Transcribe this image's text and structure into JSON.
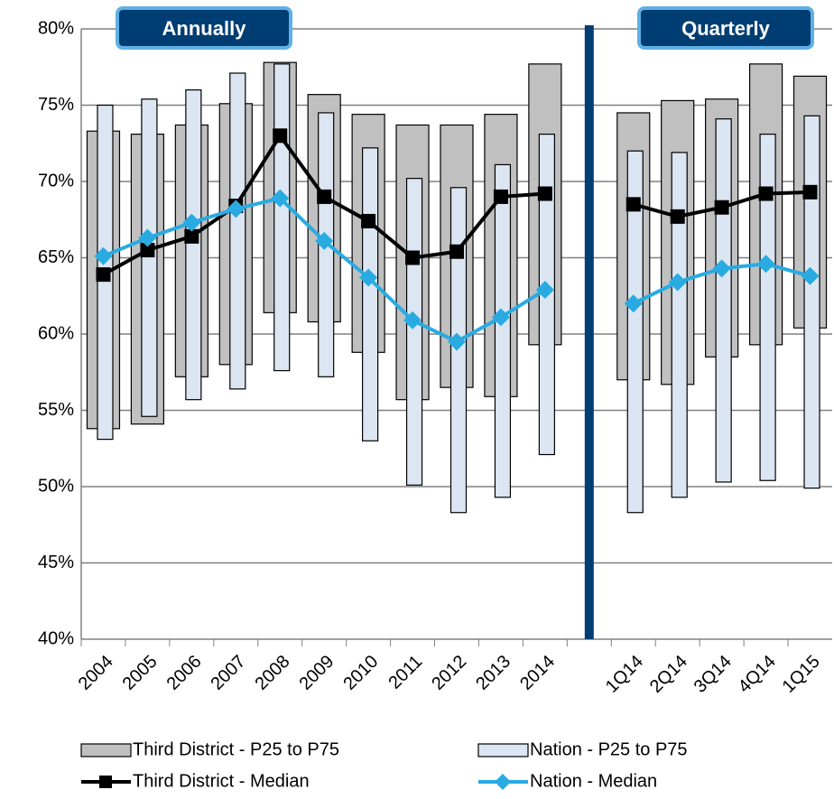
{
  "chart_data": {
    "type": "range-line",
    "annotations": [
      "Annually",
      "Quarterly"
    ],
    "categories": [
      "2004",
      "2005",
      "2006",
      "2007",
      "2008",
      "2009",
      "2010",
      "2011",
      "2012",
      "2013",
      "2014",
      null,
      "1Q14",
      "2Q14",
      "3Q14",
      "4Q14",
      "1Q15"
    ],
    "ylim": [
      40,
      80
    ],
    "yticks": [
      {
        "value": 40,
        "label": "40%"
      },
      {
        "value": 45,
        "label": "45%"
      },
      {
        "value": 50,
        "label": "50%"
      },
      {
        "value": 55,
        "label": "55%"
      },
      {
        "value": 60,
        "label": "60%"
      },
      {
        "value": 65,
        "label": "65%"
      },
      {
        "value": 70,
        "label": "70%"
      },
      {
        "value": 75,
        "label": "75%"
      },
      {
        "value": 80,
        "label": "80%"
      }
    ],
    "grid": true,
    "series": [
      {
        "name": "Third District - P25 to P75",
        "type": "range",
        "color": "#c0c0c0",
        "low": [
          53.8,
          54.1,
          57.2,
          58.0,
          61.4,
          60.8,
          58.8,
          55.7,
          56.5,
          55.9,
          59.3,
          null,
          57.0,
          56.7,
          58.5,
          59.3,
          60.4
        ],
        "high": [
          73.3,
          73.1,
          73.7,
          75.1,
          77.8,
          75.7,
          74.4,
          73.7,
          73.7,
          74.4,
          77.7,
          null,
          74.5,
          75.3,
          75.4,
          77.7,
          76.9
        ]
      },
      {
        "name": "Nation - P25 to P75",
        "type": "range",
        "color": "#dce6f2",
        "low": [
          53.1,
          54.6,
          55.7,
          56.4,
          57.6,
          57.2,
          53.0,
          50.1,
          48.3,
          49.3,
          52.1,
          null,
          48.3,
          49.3,
          50.3,
          50.4,
          49.9
        ],
        "high": [
          75.0,
          75.4,
          76.0,
          77.1,
          77.7,
          74.5,
          72.2,
          70.2,
          69.6,
          71.1,
          73.1,
          null,
          72.0,
          71.9,
          74.1,
          73.1,
          74.3
        ]
      },
      {
        "name": "Third District - Median",
        "type": "line",
        "color": "#000000",
        "marker": "square",
        "values": [
          63.9,
          65.5,
          66.4,
          68.4,
          73.0,
          69.0,
          67.4,
          65.0,
          65.4,
          69.0,
          69.2,
          null,
          68.5,
          67.7,
          68.3,
          69.2,
          69.3
        ]
      },
      {
        "name": "Nation - Median",
        "type": "line",
        "color": "#29abe2",
        "marker": "diamond",
        "values": [
          65.1,
          66.3,
          67.3,
          68.2,
          68.9,
          66.1,
          63.7,
          60.9,
          59.5,
          61.1,
          62.9,
          null,
          62.0,
          63.4,
          64.3,
          64.6,
          63.8
        ]
      }
    ]
  }
}
